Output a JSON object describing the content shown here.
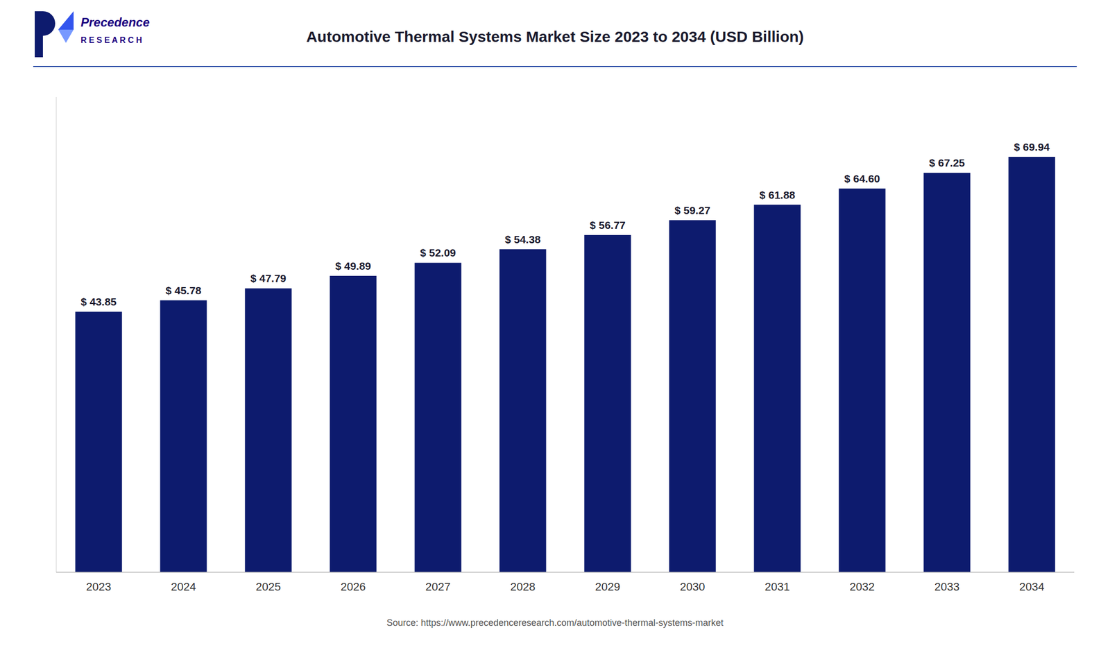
{
  "chart_data": {
    "type": "bar",
    "title": "Automotive Thermal Systems Market Size 2023 to 2034 (USD Billion)",
    "categories": [
      "2023",
      "2024",
      "2025",
      "2026",
      "2027",
      "2028",
      "2029",
      "2030",
      "2031",
      "2032",
      "2033",
      "2034"
    ],
    "values": [
      43.85,
      45.78,
      47.79,
      49.89,
      52.09,
      54.38,
      56.77,
      59.27,
      61.88,
      64.6,
      67.25,
      69.94
    ],
    "value_labels": [
      "$ 43.85",
      "$ 45.78",
      "$ 47.79",
      "$ 49.89",
      "$ 52.09",
      "$ 54.38",
      "$ 56.77",
      "$ 59.27",
      "$ 61.88",
      "$ 64.60",
      "$ 67.25",
      "$ 69.94"
    ],
    "color": "#0d1b6e",
    "ylim": [
      0,
      80
    ],
    "data_labels": true,
    "tick_labels": "x",
    "grid": false,
    "annotations": [
      "Source: https://www.precedenceresearch.com/automotive-thermal-systems-market",
      "Precedence",
      "R E S E A R C H"
    ]
  }
}
